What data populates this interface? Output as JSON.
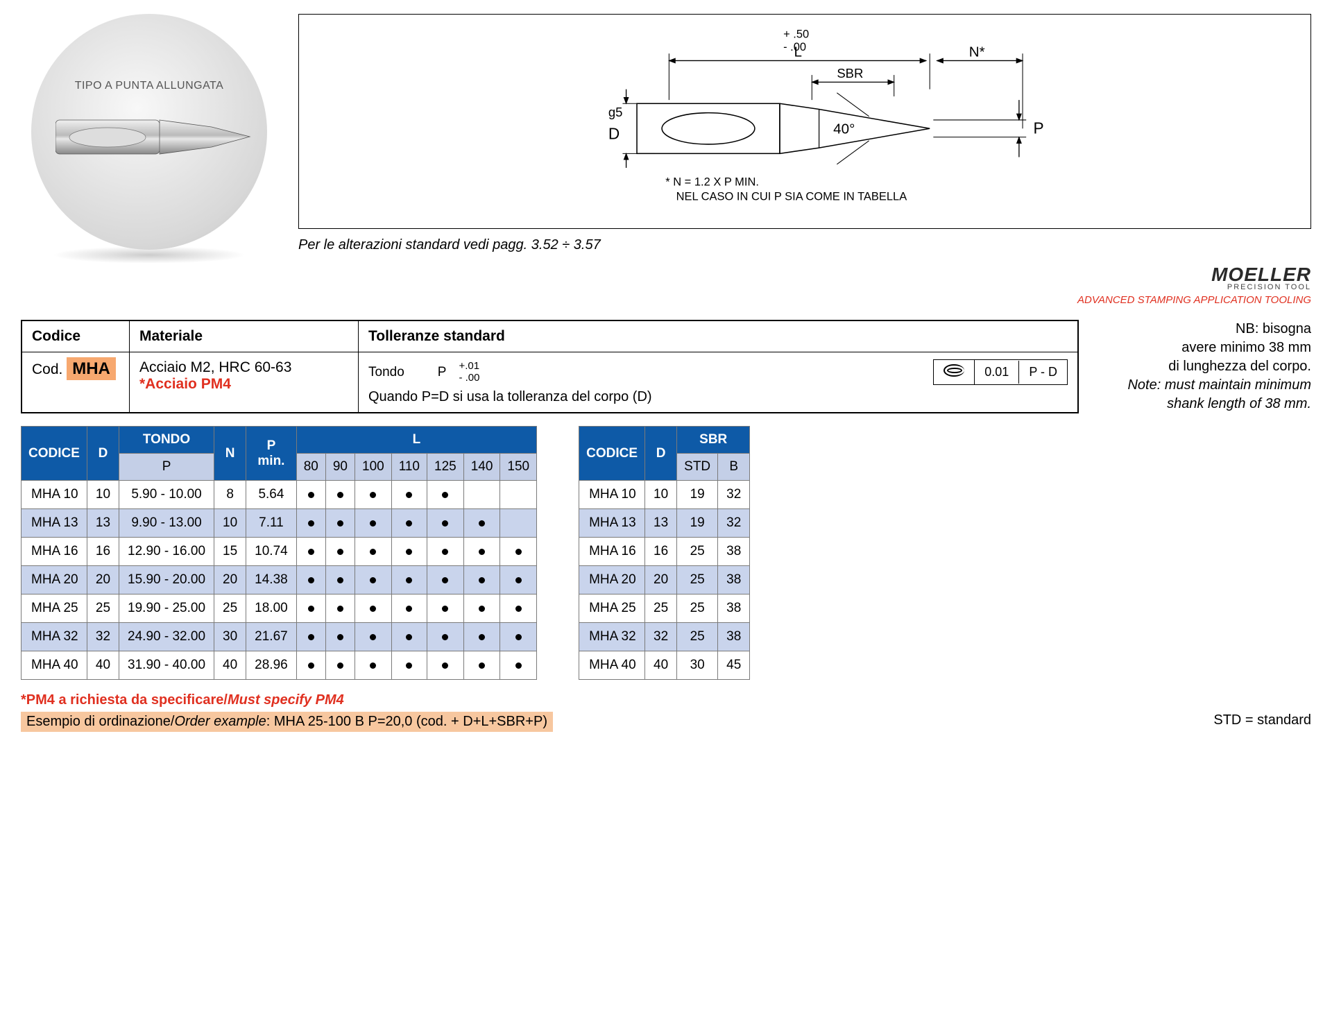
{
  "circle_label": "TIPO A PUNTA ALLUNGATA",
  "diagram": {
    "tol_top": "+ .50",
    "tol_bot": "- .00",
    "L": "L",
    "Nstar": "N*",
    "SBR": "SBR",
    "g5": "g5",
    "D": "D",
    "angle": "40°",
    "P": "P",
    "note1": "*  N = 1.2 X P MIN.",
    "note2": "NEL CASO IN CUI P SIA COME IN TABELLA",
    "caption": "Per le alterazioni standard vedi pagg. 3.52 ÷ 3.57"
  },
  "logo": {
    "main": "MOELLER",
    "sub": "PRECISION TOOL",
    "tag": "ADVANCED STAMPING APPLICATION TOOLING"
  },
  "spec": {
    "h_codice": "Codice",
    "h_mat": "Materiale",
    "h_tol": "Tolleranze standard",
    "cod_label": "Cod.",
    "cod_value": "MHA",
    "mat1": "Acciaio M2, HRC 60-63",
    "mat2": "*Acciaio PM4",
    "tol_shape": "Tondo",
    "tol_P": "P",
    "tol_p_top": "+.01",
    "tol_p_bot": "- .00",
    "tol_num": "0.01",
    "tol_ref": "P - D",
    "tol_line2": "Quando P=D si usa la tolleranza del corpo (D)"
  },
  "note": {
    "it_l1": "NB: bisogna",
    "it_l2": "avere minimo 38 mm",
    "it_l3": "di lunghezza del corpo.",
    "en_l1": "Note: must maintain minimum",
    "en_l2": "shank length of 38 mm."
  },
  "main_table": {
    "h_codice": "CODICE",
    "h_D": "D",
    "h_tondo": "TONDO",
    "h_P": "P",
    "h_N": "N",
    "h_Pmin": "P\nmin.",
    "h_L": "L",
    "L_cols": [
      "80",
      "90",
      "100",
      "110",
      "125",
      "140",
      "150"
    ],
    "rows": [
      {
        "code": "MHA 10",
        "d": "10",
        "p": "5.90 - 10.00",
        "n": "8",
        "pmin": "5.64",
        "L": [
          1,
          1,
          1,
          1,
          1,
          0,
          0
        ]
      },
      {
        "code": "MHA 13",
        "d": "13",
        "p": "9.90 - 13.00",
        "n": "10",
        "pmin": "7.11",
        "L": [
          1,
          1,
          1,
          1,
          1,
          1,
          0
        ]
      },
      {
        "code": "MHA 16",
        "d": "16",
        "p": "12.90 - 16.00",
        "n": "15",
        "pmin": "10.74",
        "L": [
          1,
          1,
          1,
          1,
          1,
          1,
          1
        ]
      },
      {
        "code": "MHA 20",
        "d": "20",
        "p": "15.90 - 20.00",
        "n": "20",
        "pmin": "14.38",
        "L": [
          1,
          1,
          1,
          1,
          1,
          1,
          1
        ]
      },
      {
        "code": "MHA 25",
        "d": "25",
        "p": "19.90 - 25.00",
        "n": "25",
        "pmin": "18.00",
        "L": [
          1,
          1,
          1,
          1,
          1,
          1,
          1
        ]
      },
      {
        "code": "MHA 32",
        "d": "32",
        "p": "24.90 - 32.00",
        "n": "30",
        "pmin": "21.67",
        "L": [
          1,
          1,
          1,
          1,
          1,
          1,
          1
        ]
      },
      {
        "code": "MHA 40",
        "d": "40",
        "p": "31.90 - 40.00",
        "n": "40",
        "pmin": "28.96",
        "L": [
          1,
          1,
          1,
          1,
          1,
          1,
          1
        ]
      }
    ]
  },
  "sbr_table": {
    "h_codice": "CODICE",
    "h_D": "D",
    "h_SBR": "SBR",
    "h_STD": "STD",
    "h_B": "B",
    "rows": [
      {
        "code": "MHA 10",
        "d": "10",
        "std": "19",
        "b": "32"
      },
      {
        "code": "MHA 13",
        "d": "13",
        "std": "19",
        "b": "32"
      },
      {
        "code": "MHA 16",
        "d": "16",
        "std": "25",
        "b": "38"
      },
      {
        "code": "MHA 20",
        "d": "20",
        "std": "25",
        "b": "38"
      },
      {
        "code": "MHA 25",
        "d": "25",
        "std": "25",
        "b": "38"
      },
      {
        "code": "MHA 32",
        "d": "32",
        "std": "25",
        "b": "38"
      },
      {
        "code": "MHA 40",
        "d": "40",
        "std": "30",
        "b": "45"
      }
    ]
  },
  "foot": {
    "pm4_a": "*PM4 a richiesta da specificare/",
    "pm4_b": "Must specify PM4",
    "ex_a": "Esempio di ordinazione/",
    "ex_b": "Order example",
    "ex_c": ": MHA 25-100 B P=20,0 (cod. + D+L+SBR+P)",
    "std": "STD = standard"
  },
  "colors": {
    "header": "#0e5aa7",
    "alt_row": "#c9d4ec",
    "badge": "#f7a86f",
    "red": "#e03020",
    "ex_bg": "#f7c79f"
  }
}
